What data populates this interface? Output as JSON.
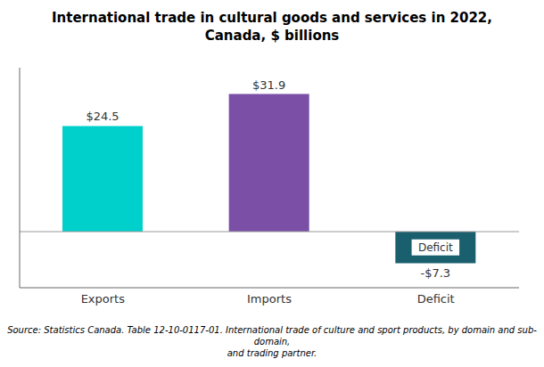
{
  "chart_data": {
    "type": "bar",
    "title": "International trade in cultural goods and services in 2022,\nCanada, $ billions",
    "categories": [
      "Exports",
      "Imports",
      "Deficit"
    ],
    "values": [
      24.5,
      31.9,
      -7.3
    ],
    "value_labels": [
      "$24.5",
      "$31.9",
      "-$7.3"
    ],
    "colors": [
      "#00d0cc",
      "#7b4fa6",
      "#1a5f6e"
    ],
    "data_labels": true,
    "ylim": [
      -13,
      38
    ],
    "grid": false,
    "tick_labels": "x",
    "annotations": [
      {
        "text": "Deficit",
        "category": "Deficit"
      }
    ],
    "source": "Source: Statistics Canada. Table 12-10-0117-01. International trade of culture and sport products, by domain and sub-domain,\nand trading partner."
  }
}
